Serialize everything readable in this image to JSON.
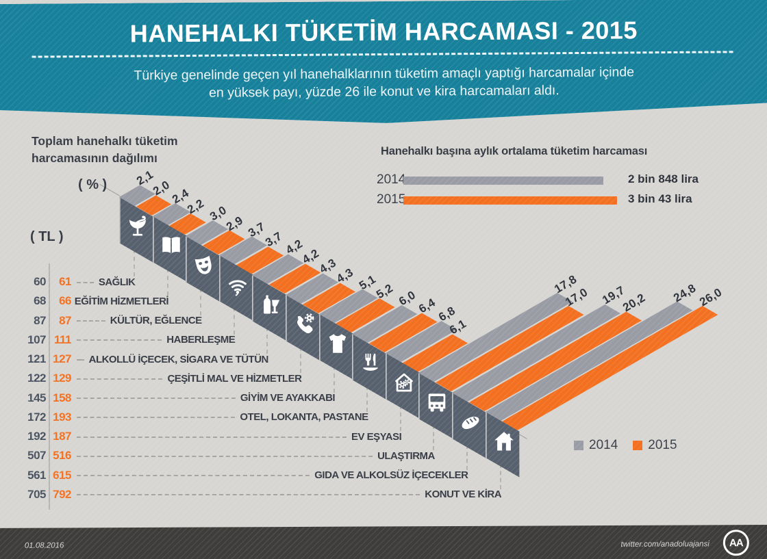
{
  "header": {
    "title": "HANEHALKI TÜKETİM HARCAMASI - 2015",
    "subtitle_line1": "Türkiye genelinde geçen yıl hanehalklarının tüketim amaçlı yaptığı harcamalar içinde",
    "subtitle_line2": "en yüksek payı, yüzde 26 ile konut ve kira harcamaları aldı."
  },
  "left_panel": {
    "title_line1": "Toplam hanehalkı tüketim",
    "title_line2": "harcamasının dağılımı",
    "percent_axis_label": "( % )",
    "tl_axis_label": "( TL )"
  },
  "legend": {
    "items": [
      {
        "label": "2014",
        "color": "#9a9ca5"
      },
      {
        "label": "2015",
        "color": "#f37021"
      }
    ]
  },
  "chart_data": [
    {
      "type": "bar",
      "projection": "isometric-3d",
      "title": "Toplam hanehalkı tüketim harcamasının dağılımı",
      "categories": [
        "SAĞLIK",
        "EĞİTİM HİZMETLERİ",
        "KÜLTÜR, EĞLENCE",
        "HABERLEŞME",
        "ALKOLLÜ İÇECEK, SİGARA VE TÜTÜN",
        "ÇEŞİTLİ MAL VE HİZMETLER",
        "GİYİM VE AYAKKABI",
        "OTEL, LOKANTA, PASTANE",
        "EV EŞYASI",
        "ULAŞTIRMA",
        "GIDA VE ALKOLSÜZ İÇECEKLER",
        "KONUT VE KİRA"
      ],
      "category_icons": [
        "pharmacy-icon",
        "open-book-icon",
        "theater-mask-icon",
        "wifi-icon",
        "bottle-glass-icon",
        "phone-service-icon",
        "shirt-icon",
        "restaurant-icon",
        "home-goods-icon",
        "bus-icon",
        "bread-icon",
        "house-icon"
      ],
      "series": [
        {
          "name": "2014",
          "unit": "%",
          "color": "#9a9ca5",
          "values": [
            2.1,
            2.4,
            3.0,
            3.7,
            4.2,
            4.3,
            5.1,
            6.0,
            6.8,
            17.8,
            19.7,
            24.8
          ]
        },
        {
          "name": "2015",
          "unit": "%",
          "color": "#f37021",
          "values": [
            2.0,
            2.2,
            2.9,
            3.7,
            4.2,
            4.3,
            5.2,
            6.4,
            6.1,
            17.0,
            20.2,
            26.0
          ]
        },
        {
          "name": "2014",
          "unit": "TL",
          "color": "#4a5260",
          "values": [
            60,
            68,
            87,
            107,
            121,
            122,
            145,
            172,
            192,
            507,
            561,
            705
          ]
        },
        {
          "name": "2015",
          "unit": "TL",
          "color": "#f37021",
          "values": [
            61,
            66,
            87,
            111,
            127,
            129,
            158,
            193,
            187,
            516,
            615,
            792
          ]
        }
      ],
      "legend_position": "right-bottom",
      "grid": false
    },
    {
      "type": "bar",
      "orientation": "horizontal",
      "title": "Hanehalkı başına aylık ortalama tüketim harcaması",
      "categories": [
        "2014",
        "2015"
      ],
      "values": [
        2848,
        3043
      ],
      "value_labels": [
        "2 bin 848 lira",
        "3 bin 43 lira"
      ],
      "colors": [
        "#9a9ca5",
        "#f37021"
      ],
      "grid": false
    }
  ],
  "footer": {
    "date": "01.08.2016",
    "handle": "twitter.com/anadoluajansi",
    "logo_text": "AA"
  },
  "colors": {
    "teal": "#17809b",
    "orange": "#f37021",
    "bar_gray": "#9a9ca5",
    "tile": "#57616e",
    "background": "#d7d6d3",
    "text_dark": "#343942",
    "footer_bg": "#3e3d3b"
  }
}
